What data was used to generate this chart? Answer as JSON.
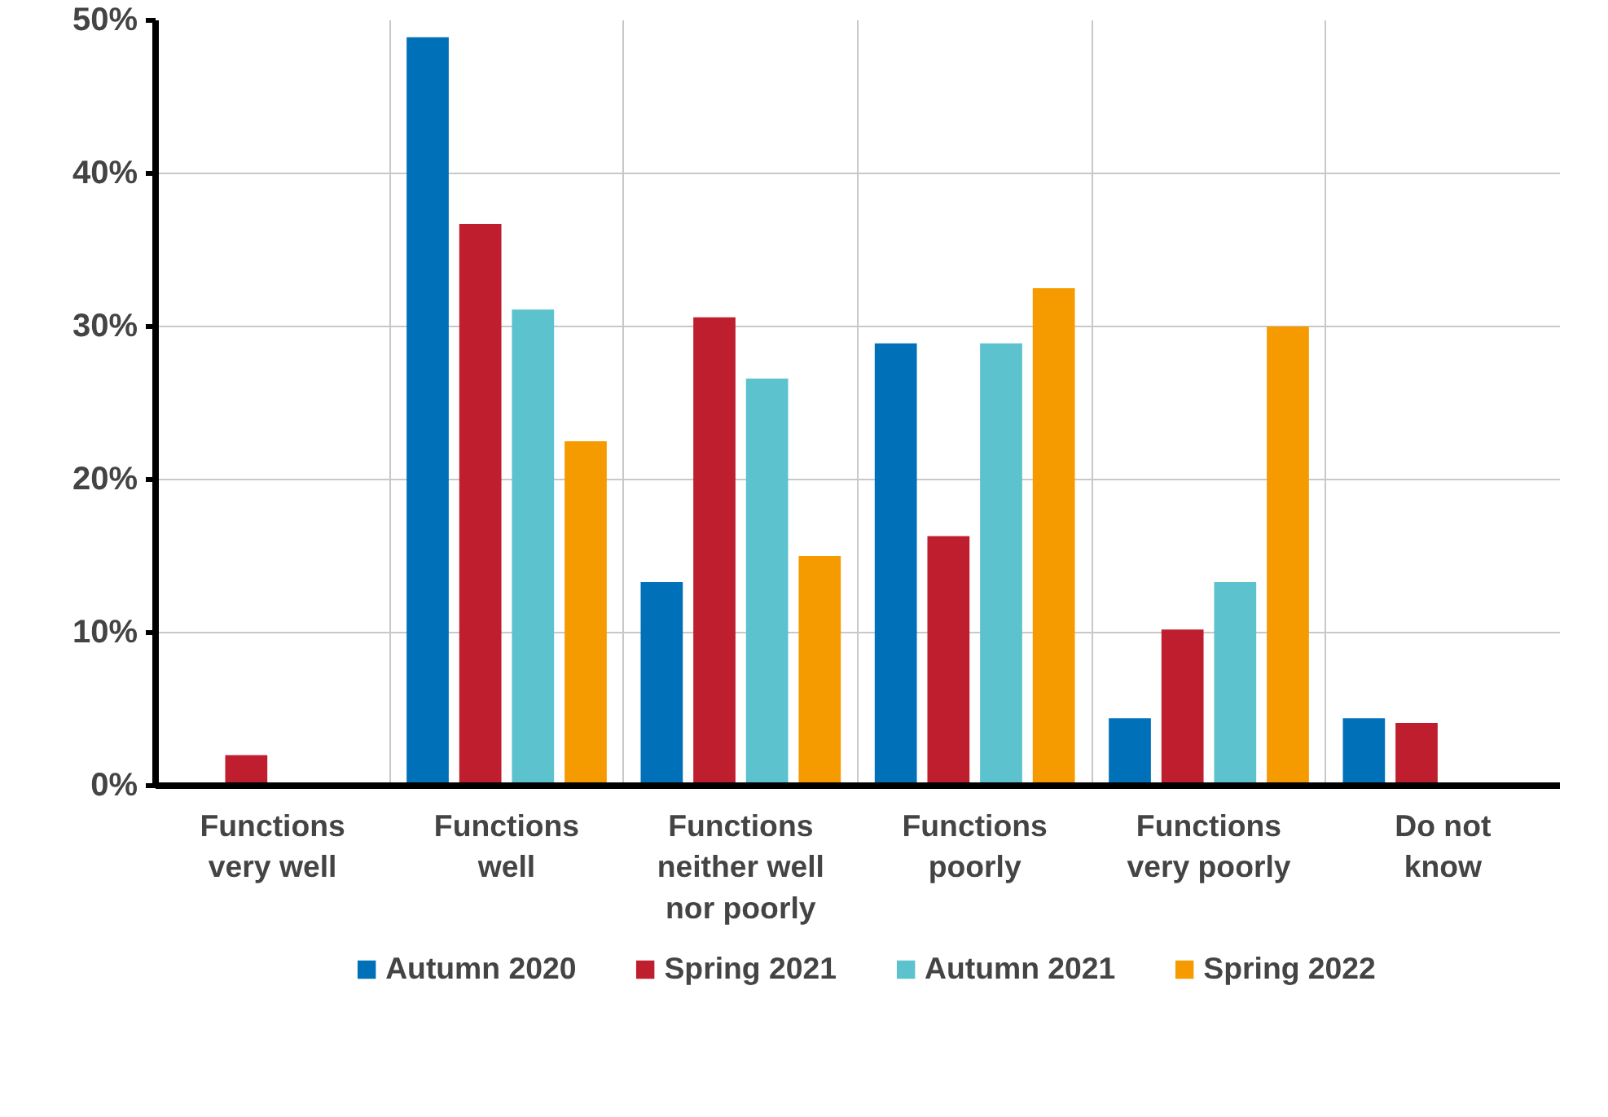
{
  "chart_data": {
    "type": "bar",
    "categories": [
      "Functions\nvery well",
      "Functions\nwell",
      "Functions\nneither well\nnor poorly",
      "Functions\npoorly",
      "Functions\nvery poorly",
      "Do not\nknow"
    ],
    "series": [
      {
        "name": "Autumn 2020",
        "color": "#0070b8",
        "values": [
          0,
          48.9,
          13.3,
          28.9,
          4.4,
          4.4
        ]
      },
      {
        "name": "Spring 2021",
        "color": "#be1e2d",
        "values": [
          2.0,
          36.7,
          30.6,
          16.3,
          10.2,
          4.1
        ]
      },
      {
        "name": "Autumn 2021",
        "color": "#5bc2ce",
        "values": [
          0,
          31.1,
          26.6,
          28.9,
          13.3,
          0
        ]
      },
      {
        "name": "Spring 2022",
        "color": "#f59b00",
        "values": [
          0,
          22.5,
          15.0,
          32.5,
          30.0,
          0
        ]
      }
    ],
    "ylim": [
      0,
      50
    ],
    "yticks": [
      {
        "value": 0,
        "label": "0%"
      },
      {
        "value": 10,
        "label": "10%"
      },
      {
        "value": 20,
        "label": "20%"
      },
      {
        "value": 30,
        "label": "30%"
      },
      {
        "value": 40,
        "label": "40%"
      },
      {
        "value": 50,
        "label": "50%"
      }
    ],
    "grid": true,
    "legend": "bottom"
  }
}
